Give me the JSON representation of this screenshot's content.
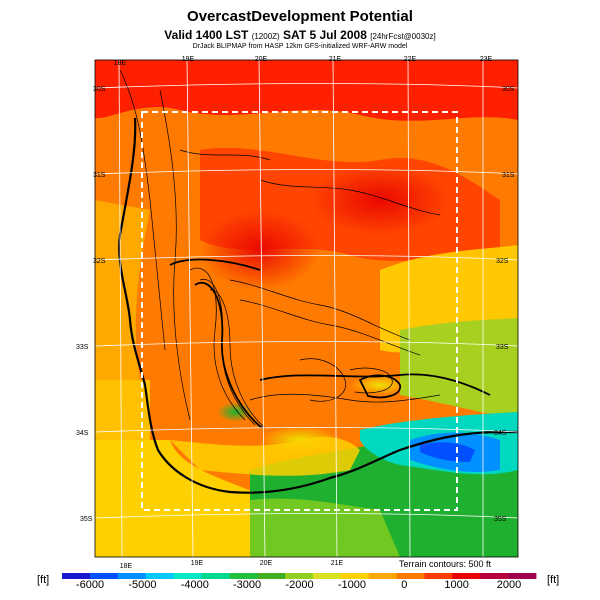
{
  "title": "OvercastDevelopment Potential",
  "subtitle": {
    "prefix": "Valid 1400 LST",
    "utc": "(1200Z)",
    "date": "SAT 5 Jul 2008",
    "forecast": "[24hrFcst@0030z]"
  },
  "credit": "DrJack BLIPMAP from HASP 12km GFS-initialized WRF-ARW model",
  "map": {
    "longitude_labels_top": [
      "18E",
      "19E",
      "20E",
      "21E",
      "22E",
      "23E"
    ],
    "longitude_labels_bottom": [
      "18E",
      "19E",
      "20E",
      "21E"
    ],
    "latitude_labels_left": [
      "30S",
      "31S",
      "32S",
      "33S",
      "34S",
      "35S"
    ],
    "latitude_labels_right": [
      "30S",
      "31S",
      "32S",
      "33S",
      "34S",
      "35S"
    ],
    "terrain_note": "Terrain contours: 500 ft"
  },
  "colorbar": {
    "unit_left": "[ft]",
    "unit_right": "[ft]",
    "tick_labels": [
      "-6000",
      "-5000",
      "-4000",
      "-3000",
      "-2000",
      "-1000",
      "0",
      "1000",
      "2000"
    ],
    "colors": [
      "#1a1acc",
      "#0050ff",
      "#0090ff",
      "#00c8ff",
      "#00e8c8",
      "#00d890",
      "#20c040",
      "#40b020",
      "#90d020",
      "#d8e020",
      "#ffd000",
      "#ffa800",
      "#ff7a00",
      "#ff3c00",
      "#e80000",
      "#b8003c",
      "#a00050"
    ]
  }
}
